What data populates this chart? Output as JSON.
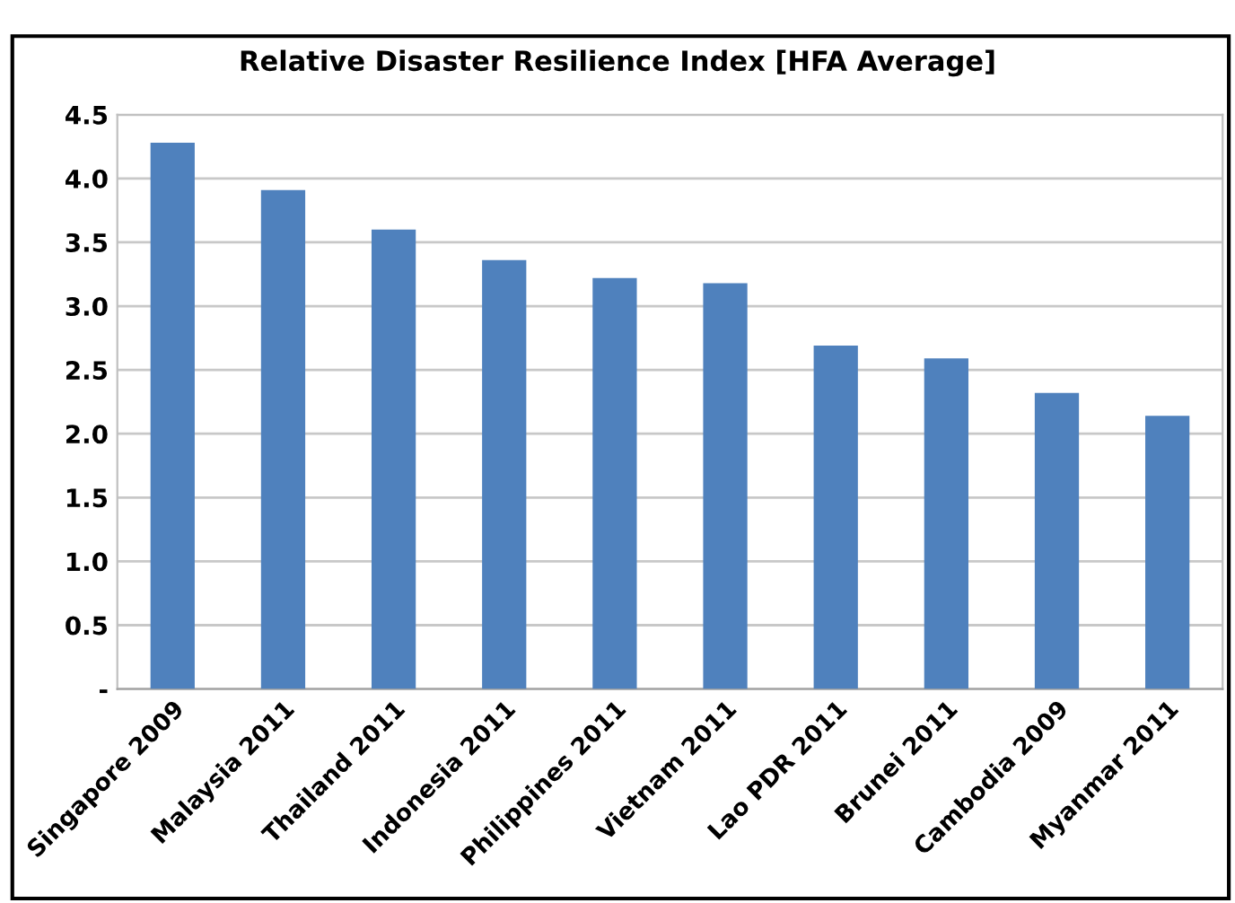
{
  "chart_data": {
    "type": "bar",
    "title": "Relative Disaster Resilience Index [HFA Average]",
    "categories": [
      "Singapore 2009",
      "Malaysia 2011",
      "Thailand 2011",
      "Indonesia 2011",
      "Philippines 2011",
      "Vietnam 2011",
      "Lao PDR 2011",
      "Brunei 2011",
      "Cambodia 2009",
      "Myanmar 2011"
    ],
    "values": [
      4.28,
      3.91,
      3.6,
      3.36,
      3.22,
      3.18,
      2.69,
      2.59,
      2.32,
      2.14
    ],
    "color": "#4f81bd",
    "ylim": [
      0,
      4.5
    ],
    "yticks": [
      {
        "value": 0,
        "label": "-"
      },
      0.5,
      {
        "value": 1,
        "label": "1.0"
      },
      1.5,
      {
        "value": 2,
        "label": "2.0"
      },
      2.5,
      {
        "value": 3,
        "label": "3.0"
      },
      3.5,
      {
        "value": 4,
        "label": "4.0"
      },
      4.5
    ],
    "grid": "y",
    "legend": false
  }
}
